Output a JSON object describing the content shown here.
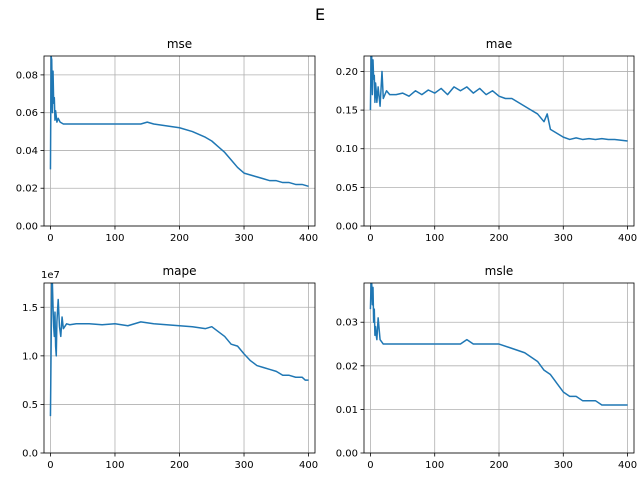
{
  "figure": {
    "suptitle": "E"
  },
  "chart_data": [
    {
      "type": "line",
      "title": "mse",
      "xlabel": "",
      "ylabel": "",
      "xlim": [
        -10,
        410
      ],
      "ylim": [
        0,
        0.09
      ],
      "xticks": [
        0,
        100,
        200,
        300,
        400
      ],
      "yticks": [
        0,
        0.02,
        0.04,
        0.06,
        0.08
      ],
      "xtick_labels": [
        "0",
        "100",
        "200",
        "300",
        "400"
      ],
      "ytick_labels": [
        "0.00",
        "0.02",
        "0.04",
        "0.06",
        "0.08"
      ],
      "grid": true,
      "color": "#1f77b4",
      "x": [
        0,
        1,
        2,
        3,
        4,
        5,
        6,
        7,
        8,
        9,
        10,
        12,
        15,
        20,
        30,
        40,
        60,
        80,
        100,
        120,
        140,
        150,
        160,
        180,
        200,
        220,
        240,
        250,
        260,
        270,
        280,
        290,
        300,
        310,
        320,
        330,
        340,
        350,
        360,
        370,
        380,
        390,
        400
      ],
      "y": [
        0.03,
        0.09,
        0.088,
        0.06,
        0.082,
        0.065,
        0.068,
        0.056,
        0.061,
        0.058,
        0.055,
        0.057,
        0.055,
        0.054,
        0.054,
        0.054,
        0.054,
        0.054,
        0.054,
        0.054,
        0.054,
        0.055,
        0.054,
        0.053,
        0.052,
        0.05,
        0.047,
        0.045,
        0.042,
        0.039,
        0.035,
        0.031,
        0.028,
        0.027,
        0.026,
        0.025,
        0.024,
        0.024,
        0.023,
        0.023,
        0.022,
        0.022,
        0.021
      ]
    },
    {
      "type": "line",
      "title": "mae",
      "xlabel": "",
      "ylabel": "",
      "xlim": [
        -10,
        410
      ],
      "ylim": [
        0,
        0.22
      ],
      "xticks": [
        0,
        100,
        200,
        300,
        400
      ],
      "yticks": [
        0,
        0.05,
        0.1,
        0.15,
        0.2
      ],
      "xtick_labels": [
        "0",
        "100",
        "200",
        "300",
        "400"
      ],
      "ytick_labels": [
        "0.00",
        "0.05",
        "0.10",
        "0.15",
        "0.20"
      ],
      "grid": true,
      "color": "#1f77b4",
      "x": [
        0,
        1,
        2,
        3,
        4,
        5,
        6,
        7,
        8,
        9,
        10,
        12,
        15,
        18,
        20,
        25,
        30,
        40,
        50,
        60,
        70,
        80,
        90,
        100,
        110,
        120,
        130,
        140,
        150,
        160,
        170,
        180,
        190,
        200,
        210,
        220,
        230,
        240,
        250,
        260,
        270,
        275,
        280,
        290,
        300,
        310,
        320,
        330,
        340,
        350,
        360,
        370,
        380,
        390,
        400
      ],
      "y": [
        0.15,
        0.22,
        0.22,
        0.17,
        0.215,
        0.19,
        0.195,
        0.16,
        0.185,
        0.175,
        0.16,
        0.18,
        0.155,
        0.2,
        0.165,
        0.175,
        0.17,
        0.17,
        0.172,
        0.168,
        0.175,
        0.17,
        0.176,
        0.172,
        0.178,
        0.17,
        0.18,
        0.175,
        0.18,
        0.172,
        0.178,
        0.17,
        0.175,
        0.168,
        0.165,
        0.165,
        0.16,
        0.155,
        0.15,
        0.145,
        0.135,
        0.145,
        0.125,
        0.12,
        0.115,
        0.112,
        0.114,
        0.112,
        0.113,
        0.112,
        0.113,
        0.112,
        0.112,
        0.111,
        0.11
      ]
    },
    {
      "type": "line",
      "title": "mape",
      "xlabel": "",
      "ylabel": "",
      "offset_text": "1e7",
      "xlim": [
        -10,
        410
      ],
      "ylim": [
        0,
        17500000
      ],
      "xticks": [
        0,
        100,
        200,
        300,
        400
      ],
      "yticks": [
        0,
        5000000,
        10000000,
        15000000
      ],
      "xtick_labels": [
        "0",
        "100",
        "200",
        "300",
        "400"
      ],
      "ytick_labels": [
        "0.0",
        "0.5",
        "1.0",
        "1.5"
      ],
      "grid": true,
      "color": "#1f77b4",
      "x": [
        0,
        2,
        3,
        4,
        5,
        6,
        7,
        8,
        9,
        10,
        12,
        14,
        16,
        18,
        20,
        25,
        30,
        40,
        60,
        80,
        100,
        120,
        140,
        160,
        180,
        200,
        220,
        240,
        250,
        260,
        270,
        280,
        290,
        300,
        310,
        320,
        330,
        340,
        350,
        360,
        370,
        380,
        390,
        395,
        400
      ],
      "y": [
        3800000,
        17500000,
        17500000,
        15000000,
        13000000,
        12000000,
        14500000,
        11000000,
        10000000,
        13500000,
        15800000,
        13000000,
        12000000,
        14000000,
        12800000,
        13300000,
        13200000,
        13300000,
        13300000,
        13200000,
        13300000,
        13100000,
        13500000,
        13300000,
        13200000,
        13100000,
        13000000,
        12800000,
        13000000,
        12500000,
        12000000,
        11200000,
        11000000,
        10200000,
        9500000,
        9000000,
        8800000,
        8600000,
        8400000,
        8000000,
        8000000,
        7800000,
        7800000,
        7500000,
        7500000
      ]
    },
    {
      "type": "line",
      "title": "msle",
      "xlabel": "",
      "ylabel": "",
      "xlim": [
        -10,
        410
      ],
      "ylim": [
        0,
        0.039
      ],
      "xticks": [
        0,
        100,
        200,
        300,
        400
      ],
      "yticks": [
        0,
        0.01,
        0.02,
        0.03
      ],
      "xtick_labels": [
        "0",
        "100",
        "200",
        "300",
        "400"
      ],
      "ytick_labels": [
        "0.00",
        "0.01",
        "0.02",
        "0.03"
      ],
      "grid": true,
      "color": "#1f77b4",
      "x": [
        0,
        1,
        2,
        3,
        4,
        5,
        6,
        7,
        8,
        9,
        10,
        12,
        15,
        20,
        30,
        40,
        60,
        80,
        100,
        120,
        140,
        150,
        160,
        180,
        200,
        220,
        240,
        250,
        260,
        270,
        280,
        290,
        300,
        310,
        320,
        330,
        340,
        350,
        360,
        370,
        380,
        390,
        400
      ],
      "y": [
        0.033,
        0.039,
        0.039,
        0.034,
        0.038,
        0.03,
        0.033,
        0.027,
        0.029,
        0.027,
        0.026,
        0.031,
        0.026,
        0.025,
        0.025,
        0.025,
        0.025,
        0.025,
        0.025,
        0.025,
        0.025,
        0.026,
        0.025,
        0.025,
        0.025,
        0.024,
        0.023,
        0.022,
        0.021,
        0.019,
        0.018,
        0.016,
        0.014,
        0.013,
        0.013,
        0.012,
        0.012,
        0.012,
        0.011,
        0.011,
        0.011,
        0.011,
        0.011
      ]
    }
  ]
}
